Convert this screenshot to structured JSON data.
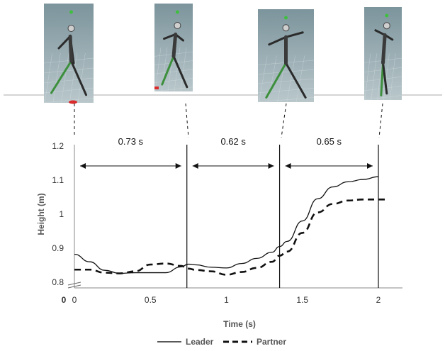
{
  "chart_data": {
    "type": "line",
    "xlabel": "Time (s)",
    "ylabel": "Height (m)",
    "xlim": [
      0,
      2.1
    ],
    "ylim": [
      0.8,
      1.2
    ],
    "x_ticks": [
      "0",
      "0.5",
      "1",
      "1.5",
      "2"
    ],
    "x_tick_values": [
      0,
      0.5,
      1,
      1.5,
      2
    ],
    "y_ticks": [
      "0.8",
      "0.9",
      "1",
      "1.1",
      "1.2"
    ],
    "y_tick_values": [
      0.8,
      0.9,
      1.0,
      1.1,
      1.2
    ],
    "origin_label": "0",
    "axis_break": true,
    "grid": false,
    "legend_position": "bottom-center",
    "event_times": [
      0.0,
      0.74,
      1.35,
      2.0
    ],
    "intervals": [
      {
        "label": "0.73 s",
        "start": 0.0,
        "end": 0.74
      },
      {
        "label": "0.62 s",
        "start": 0.74,
        "end": 1.35
      },
      {
        "label": "0.65 s",
        "start": 1.35,
        "end": 2.0
      }
    ],
    "series": [
      {
        "name": "Leader",
        "style": "solid",
        "x": [
          0.0,
          0.1,
          0.2,
          0.3,
          0.4,
          0.5,
          0.6,
          0.7,
          0.75,
          0.8,
          0.9,
          1.0,
          1.1,
          1.2,
          1.3,
          1.35,
          1.4,
          1.5,
          1.6,
          1.7,
          1.8,
          1.9,
          2.0
        ],
        "y": [
          0.882,
          0.86,
          0.835,
          0.826,
          0.828,
          0.828,
          0.828,
          0.845,
          0.853,
          0.851,
          0.844,
          0.842,
          0.855,
          0.87,
          0.888,
          0.905,
          0.92,
          0.98,
          1.045,
          1.08,
          1.095,
          1.102,
          1.11
        ]
      },
      {
        "name": "Partner",
        "style": "dashed",
        "x": [
          0.0,
          0.1,
          0.2,
          0.3,
          0.4,
          0.5,
          0.6,
          0.7,
          0.75,
          0.8,
          0.9,
          1.0,
          1.1,
          1.2,
          1.3,
          1.35,
          1.4,
          1.5,
          1.6,
          1.7,
          1.8,
          1.9,
          2.0,
          2.05
        ],
        "y": [
          0.837,
          0.837,
          0.828,
          0.826,
          0.832,
          0.852,
          0.855,
          0.848,
          0.84,
          0.836,
          0.832,
          0.822,
          0.83,
          0.842,
          0.86,
          0.878,
          0.89,
          0.945,
          1.005,
          1.03,
          1.04,
          1.043,
          1.043,
          1.043
        ]
      }
    ]
  },
  "images": [
    {
      "icon": "leader-pose-1"
    },
    {
      "icon": "leader-pose-2"
    },
    {
      "icon": "leader-pose-3"
    },
    {
      "icon": "leader-pose-4"
    }
  ]
}
